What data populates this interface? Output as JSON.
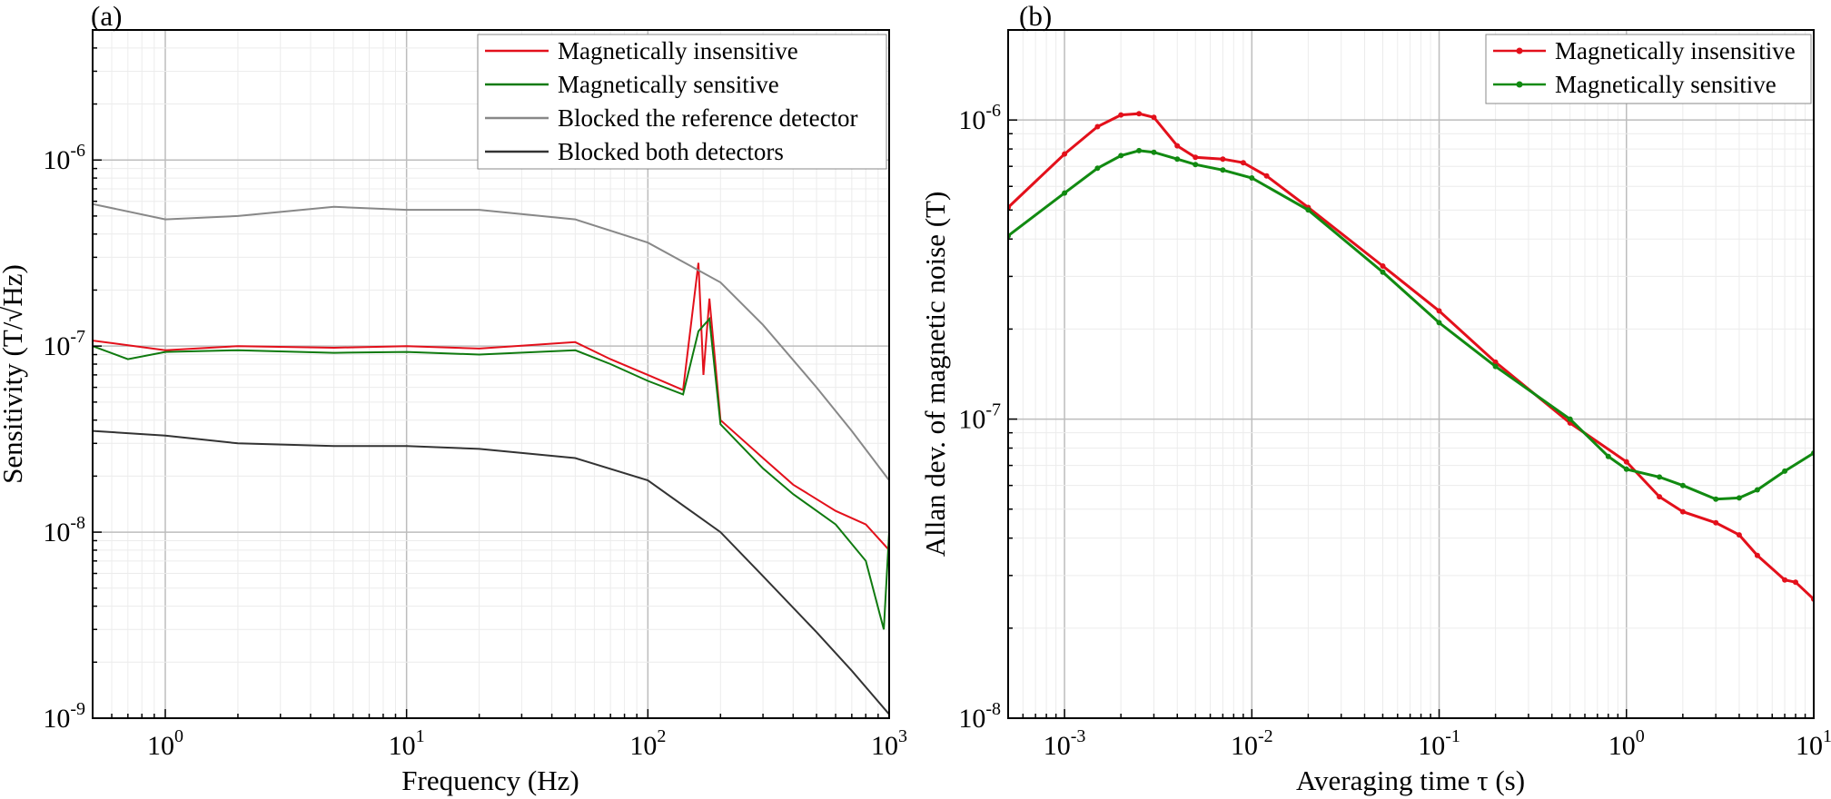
{
  "chart_data": [
    {
      "type": "line",
      "panel_label": "(a)",
      "xlabel": "Frequency (Hz)",
      "ylabel": "Sensitivity (T/√Hz)",
      "xscale": "log",
      "yscale": "log",
      "xlim": [
        0.5,
        1000
      ],
      "ylim": [
        1e-09,
        5e-06
      ],
      "xticks": [
        {
          "base": "10",
          "exp": "0"
        },
        {
          "base": "10",
          "exp": "1"
        },
        {
          "base": "10",
          "exp": "2"
        },
        {
          "base": "10",
          "exp": "3"
        }
      ],
      "yticks": [
        {
          "base": "10",
          "exp": "-9"
        },
        {
          "base": "10",
          "exp": "-8"
        },
        {
          "base": "10",
          "exp": "-7"
        },
        {
          "base": "10",
          "exp": "-6"
        }
      ],
      "grid": true,
      "legend_position": "top-right",
      "series": [
        {
          "name": "Magnetically insensitive",
          "color": "#e3101b",
          "points": [
            [
              0.5,
              1.07e-07
            ],
            [
              1,
              9.5e-08
            ],
            [
              2,
              1e-07
            ],
            [
              5,
              9.8e-08
            ],
            [
              10,
              1e-07
            ],
            [
              20,
              9.7e-08
            ],
            [
              50,
              1.05e-07
            ],
            [
              70,
              8.5e-08
            ],
            [
              100,
              7e-08
            ],
            [
              140,
              5.8e-08
            ],
            [
              162,
              2.8e-07
            ],
            [
              170,
              7e-08
            ],
            [
              180,
              1.8e-07
            ],
            [
              200,
              4e-08
            ],
            [
              300,
              2.5e-08
            ],
            [
              400,
              1.8e-08
            ],
            [
              600,
              1.3e-08
            ],
            [
              800,
              1.1e-08
            ],
            [
              1000,
              8e-09
            ]
          ]
        },
        {
          "name": "Magnetically sensitive",
          "color": "#0f7a0f",
          "points": [
            [
              0.5,
              1e-07
            ],
            [
              0.7,
              8.5e-08
            ],
            [
              1,
              9.3e-08
            ],
            [
              2,
              9.5e-08
            ],
            [
              5,
              9.2e-08
            ],
            [
              10,
              9.3e-08
            ],
            [
              20,
              9e-08
            ],
            [
              50,
              9.5e-08
            ],
            [
              70,
              8e-08
            ],
            [
              100,
              6.5e-08
            ],
            [
              140,
              5.5e-08
            ],
            [
              162,
              1.2e-07
            ],
            [
              180,
              1.4e-07
            ],
            [
              200,
              3.8e-08
            ],
            [
              300,
              2.2e-08
            ],
            [
              400,
              1.6e-08
            ],
            [
              600,
              1.1e-08
            ],
            [
              800,
              7e-09
            ],
            [
              950,
              3e-09
            ],
            [
              1000,
              1e-08
            ]
          ]
        },
        {
          "name": "Blocked the reference detector",
          "color": "#888888",
          "points": [
            [
              0.5,
              5.8e-07
            ],
            [
              1,
              4.8e-07
            ],
            [
              2,
              5e-07
            ],
            [
              5,
              5.6e-07
            ],
            [
              10,
              5.4e-07
            ],
            [
              20,
              5.4e-07
            ],
            [
              50,
              4.8e-07
            ],
            [
              100,
              3.6e-07
            ],
            [
              200,
              2.2e-07
            ],
            [
              300,
              1.3e-07
            ],
            [
              500,
              6e-08
            ],
            [
              700,
              3.5e-08
            ],
            [
              1000,
              1.9e-08
            ]
          ]
        },
        {
          "name": "Blocked both detectors",
          "color": "#333333",
          "points": [
            [
              0.5,
              3.5e-08
            ],
            [
              1,
              3.3e-08
            ],
            [
              2,
              3e-08
            ],
            [
              5,
              2.9e-08
            ],
            [
              10,
              2.9e-08
            ],
            [
              20,
              2.8e-08
            ],
            [
              50,
              2.5e-08
            ],
            [
              100,
              1.9e-08
            ],
            [
              200,
              1e-08
            ],
            [
              300,
              5.8e-09
            ],
            [
              500,
              2.9e-09
            ],
            [
              700,
              1.8e-09
            ],
            [
              1000,
              1.05e-09
            ]
          ]
        }
      ]
    },
    {
      "type": "line",
      "panel_label": "(b)",
      "xlabel": "Averaging time τ (s)",
      "ylabel": "Allan dev. of magnetic noise (T)",
      "xscale": "log",
      "yscale": "log",
      "xlim": [
        0.0005,
        10
      ],
      "ylim": [
        1e-08,
        2e-06
      ],
      "xticks": [
        {
          "base": "10",
          "exp": "-3"
        },
        {
          "base": "10",
          "exp": "-2"
        },
        {
          "base": "10",
          "exp": "-1"
        },
        {
          "base": "10",
          "exp": "0"
        },
        {
          "base": "10",
          "exp": "1"
        }
      ],
      "yticks": [
        {
          "base": "10",
          "exp": "-8"
        },
        {
          "base": "10",
          "exp": "-7"
        },
        {
          "base": "10",
          "exp": "-6"
        }
      ],
      "grid": true,
      "legend_position": "top-right",
      "series": [
        {
          "name": "Magnetically insensitive",
          "color": "#e3101b",
          "points": [
            [
              0.0005,
              5.1e-07
            ],
            [
              0.001,
              7.7e-07
            ],
            [
              0.0015,
              9.5e-07
            ],
            [
              0.002,
              1.04e-06
            ],
            [
              0.0025,
              1.05e-06
            ],
            [
              0.003,
              1.02e-06
            ],
            [
              0.004,
              8.2e-07
            ],
            [
              0.005,
              7.5e-07
            ],
            [
              0.007,
              7.4e-07
            ],
            [
              0.009,
              7.2e-07
            ],
            [
              0.012,
              6.5e-07
            ],
            [
              0.02,
              5.1e-07
            ],
            [
              0.05,
              3.25e-07
            ],
            [
              0.1,
              2.3e-07
            ],
            [
              0.2,
              1.55e-07
            ],
            [
              0.5,
              9.7e-08
            ],
            [
              1,
              7.2e-08
            ],
            [
              1.5,
              5.5e-08
            ],
            [
              2,
              4.9e-08
            ],
            [
              3,
              4.5e-08
            ],
            [
              4,
              4.1e-08
            ],
            [
              5,
              3.5e-08
            ],
            [
              7,
              2.9e-08
            ],
            [
              8,
              2.85e-08
            ],
            [
              10,
              2.5e-08
            ]
          ]
        },
        {
          "name": "Magnetically sensitive",
          "color": "#118a11",
          "points": [
            [
              0.0005,
              4.1e-07
            ],
            [
              0.001,
              5.7e-07
            ],
            [
              0.0015,
              6.9e-07
            ],
            [
              0.002,
              7.6e-07
            ],
            [
              0.0025,
              7.9e-07
            ],
            [
              0.003,
              7.8e-07
            ],
            [
              0.004,
              7.4e-07
            ],
            [
              0.005,
              7.1e-07
            ],
            [
              0.007,
              6.8e-07
            ],
            [
              0.01,
              6.4e-07
            ],
            [
              0.02,
              5e-07
            ],
            [
              0.05,
              3.1e-07
            ],
            [
              0.1,
              2.1e-07
            ],
            [
              0.2,
              1.5e-07
            ],
            [
              0.5,
              1e-07
            ],
            [
              0.8,
              7.5e-08
            ],
            [
              1,
              6.8e-08
            ],
            [
              1.5,
              6.4e-08
            ],
            [
              2,
              6e-08
            ],
            [
              3,
              5.4e-08
            ],
            [
              4,
              5.45e-08
            ],
            [
              5,
              5.8e-08
            ],
            [
              7,
              6.7e-08
            ],
            [
              10,
              7.7e-08
            ]
          ]
        }
      ]
    }
  ]
}
